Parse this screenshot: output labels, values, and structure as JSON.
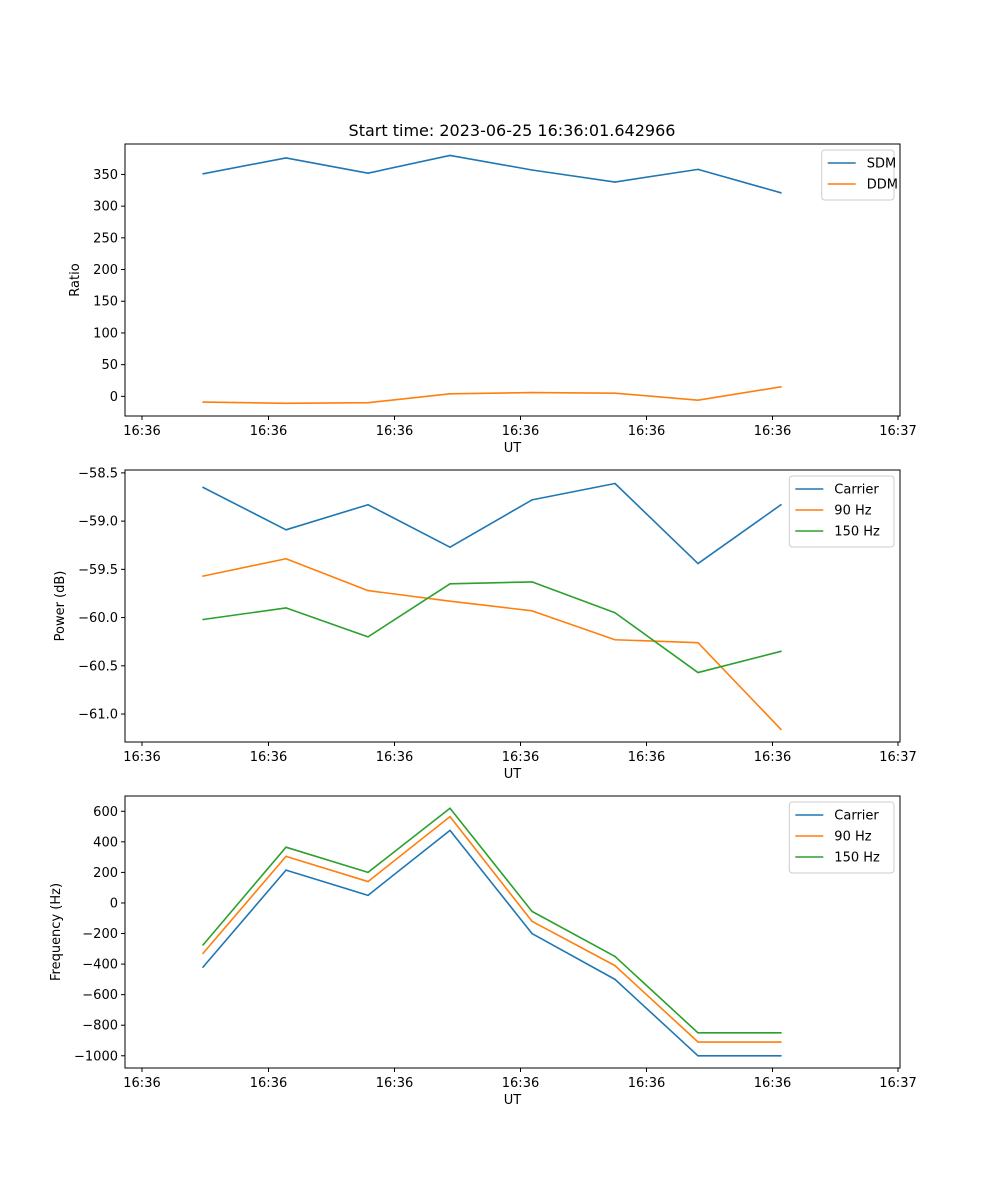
{
  "title": "Start time: 2023-06-25 16:36:01.642966",
  "chart_data": [
    {
      "type": "line",
      "ylabel": "Ratio",
      "xlabel": "UT",
      "x_tick_labels": [
        "16:36",
        "16:36",
        "16:36",
        "16:36",
        "16:36",
        "16:36",
        "16:36",
        "16:37"
      ],
      "y_ticks": [
        0,
        50,
        100,
        150,
        200,
        250,
        300,
        350
      ],
      "y_tick_labels": [
        "0",
        "50",
        "100",
        "150",
        "200",
        "250",
        "300",
        "350"
      ],
      "ylim": [
        -31,
        398
      ],
      "legend_position": "top-right",
      "series": [
        {
          "name": "SDM",
          "color": "#1f77b4",
          "values": [
            351,
            376,
            352,
            380,
            357,
            338,
            358,
            321
          ]
        },
        {
          "name": "DDM",
          "color": "#ff7f0e",
          "values": [
            -9,
            -11,
            -10,
            4,
            6,
            5,
            -6,
            15
          ]
        }
      ]
    },
    {
      "type": "line",
      "ylabel": "Power (dB)",
      "xlabel": "UT",
      "x_tick_labels": [
        "16:36",
        "16:36",
        "16:36",
        "16:36",
        "16:36",
        "16:36",
        "16:36",
        "16:37"
      ],
      "y_ticks": [
        -58.5,
        -59.0,
        -59.5,
        -60.0,
        -60.5,
        -61.0
      ],
      "y_tick_labels": [
        "−58.5",
        "−59.0",
        "−59.5",
        "−60.0",
        "−60.5",
        "−61.0"
      ],
      "ylim": [
        -61.29,
        -58.47
      ],
      "legend_position": "top-right",
      "series": [
        {
          "name": "Carrier",
          "color": "#1f77b4",
          "values": [
            -58.65,
            -59.09,
            -58.83,
            -59.27,
            -58.78,
            -58.61,
            -59.44,
            -58.83
          ]
        },
        {
          "name": "90 Hz",
          "color": "#ff7f0e",
          "values": [
            -59.57,
            -59.39,
            -59.72,
            -59.83,
            -59.93,
            -60.23,
            -60.26,
            -61.16
          ]
        },
        {
          "name": "150 Hz",
          "color": "#2ca02c",
          "values": [
            -60.02,
            -59.9,
            -60.2,
            -59.65,
            -59.63,
            -59.95,
            -60.57,
            -60.35
          ]
        }
      ]
    },
    {
      "type": "line",
      "ylabel": "Frequency (Hz)",
      "xlabel": "UT",
      "x_tick_labels": [
        "16:36",
        "16:36",
        "16:36",
        "16:36",
        "16:36",
        "16:36",
        "16:36",
        "16:37"
      ],
      "y_ticks": [
        600,
        400,
        200,
        0,
        -200,
        -400,
        -600,
        -800,
        -1000
      ],
      "y_tick_labels": [
        "600",
        "400",
        "200",
        "0",
        "−200",
        "−400",
        "−600",
        "−800",
        "−1000"
      ],
      "ylim": [
        -1080,
        700
      ],
      "legend_position": "top-right",
      "series": [
        {
          "name": "Carrier",
          "color": "#1f77b4",
          "values": [
            -420,
            215,
            50,
            475,
            -200,
            -500,
            -1000,
            -1000
          ]
        },
        {
          "name": "90 Hz",
          "color": "#ff7f0e",
          "values": [
            -330,
            305,
            140,
            565,
            -120,
            -410,
            -910,
            -910
          ]
        },
        {
          "name": "150 Hz",
          "color": "#2ca02c",
          "values": [
            -275,
            365,
            200,
            620,
            -55,
            -350,
            -850,
            -850
          ]
        }
      ]
    }
  ]
}
